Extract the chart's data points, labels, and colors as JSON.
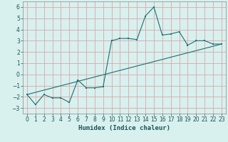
{
  "title": "",
  "xlabel": "Humidex (Indice chaleur)",
  "bg_color": "#d8f0ee",
  "grid_color": "#d8a8a8",
  "line_color": "#1a7070",
  "xlim": [
    -0.5,
    23.5
  ],
  "ylim": [
    -3.5,
    6.5
  ],
  "xticks": [
    0,
    1,
    2,
    3,
    4,
    5,
    6,
    7,
    8,
    9,
    10,
    11,
    12,
    13,
    14,
    15,
    16,
    17,
    18,
    19,
    20,
    21,
    22,
    23
  ],
  "yticks": [
    -3,
    -2,
    -1,
    0,
    1,
    2,
    3,
    4,
    5,
    6
  ],
  "line1_x": [
    0,
    1,
    2,
    3,
    4,
    5,
    6,
    7,
    8,
    9,
    10,
    11,
    12,
    13,
    14,
    15,
    16,
    17,
    18,
    19,
    20,
    21,
    22,
    23
  ],
  "line1_y": [
    -1.8,
    -2.7,
    -1.8,
    -2.1,
    -2.1,
    -2.5,
    -0.5,
    -1.2,
    -1.2,
    -1.1,
    3.0,
    3.2,
    3.2,
    3.1,
    5.2,
    6.0,
    3.5,
    3.6,
    3.8,
    2.6,
    3.0,
    3.0,
    2.7,
    2.7
  ],
  "line2_x": [
    0,
    23
  ],
  "line2_y": [
    -1.8,
    2.7
  ],
  "tick_fontsize": 5.5,
  "xlabel_fontsize": 6.5
}
